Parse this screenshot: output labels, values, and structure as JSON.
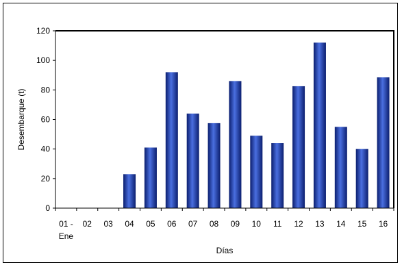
{
  "chart_data": {
    "type": "bar",
    "categories": [
      "01 - Ene",
      "02",
      "03",
      "04",
      "05",
      "06",
      "07",
      "08",
      "09",
      "10",
      "11",
      "12",
      "13",
      "14",
      "15",
      "16"
    ],
    "category_lines": [
      [
        "01 -",
        "Ene"
      ],
      [
        "02"
      ],
      [
        "03"
      ],
      [
        "04"
      ],
      [
        "05"
      ],
      [
        "06"
      ],
      [
        "07"
      ],
      [
        "08"
      ],
      [
        "09"
      ],
      [
        "10"
      ],
      [
        "11"
      ],
      [
        "12"
      ],
      [
        "13"
      ],
      [
        "14"
      ],
      [
        "15"
      ],
      [
        "16"
      ]
    ],
    "values": [
      0,
      0,
      0,
      23,
      41,
      92,
      64,
      57.5,
      86,
      49,
      44,
      82.5,
      112,
      55,
      40,
      88.5
    ],
    "xlabel": "Días",
    "ylabel": "Desembarque (t)",
    "ylim": [
      0,
      120
    ],
    "yticks": [
      0,
      20,
      40,
      60,
      80,
      100,
      120
    ],
    "grid": false,
    "legend": "none",
    "colors": {
      "bar_edge": "#0b1e6e",
      "bar_center": "#4a6fe0",
      "axis": "#000000"
    }
  }
}
